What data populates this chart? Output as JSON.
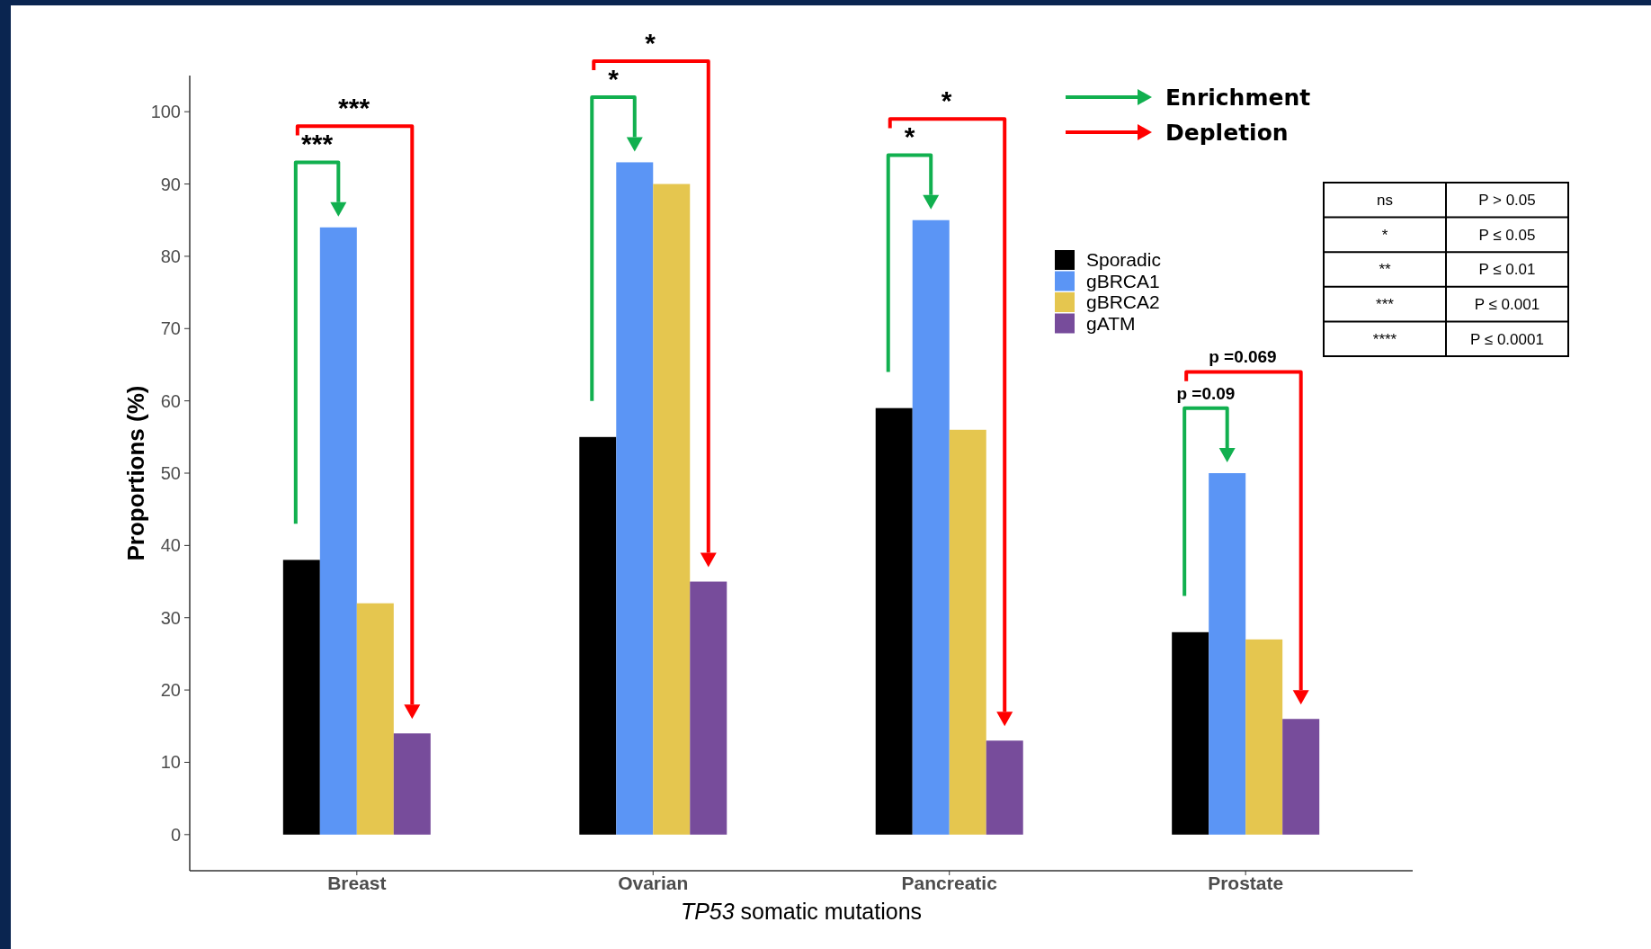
{
  "chart_data": {
    "type": "bar",
    "xlabel": "TP53 somatic mutations",
    "ylabel": "Proportions (%)",
    "categories": [
      "Breast",
      "Ovarian",
      "Pancreatic",
      "Prostate"
    ],
    "series": [
      {
        "name": "Sporadic",
        "color": "#000000",
        "values": [
          38,
          55,
          59,
          28
        ]
      },
      {
        "name": "gBRCA1",
        "color": "#5b95f5",
        "values": [
          84,
          93,
          85,
          50
        ]
      },
      {
        "name": "gBRCA2",
        "color": "#e5c64f",
        "values": [
          32,
          90,
          56,
          27
        ]
      },
      {
        "name": "gATM",
        "color": "#774c9b",
        "values": [
          14,
          35,
          13,
          16
        ]
      }
    ],
    "ylim": [
      -5,
      105
    ],
    "yticks": [
      0,
      10,
      20,
      30,
      40,
      50,
      60,
      70,
      80,
      90,
      100
    ],
    "grid": false,
    "legend": "right",
    "annotations": [
      "***",
      "***",
      "*",
      "*",
      "*",
      "*",
      "p =0.09",
      "p =0.069",
      "Enrichment",
      "Depletion",
      "ns",
      "P > 0.05",
      "*",
      "P ≤ 0.05",
      "**",
      "P ≤ 0.01",
      "***",
      "P ≤ 0.001",
      "****",
      "P ≤ 0.0001"
    ]
  }
}
